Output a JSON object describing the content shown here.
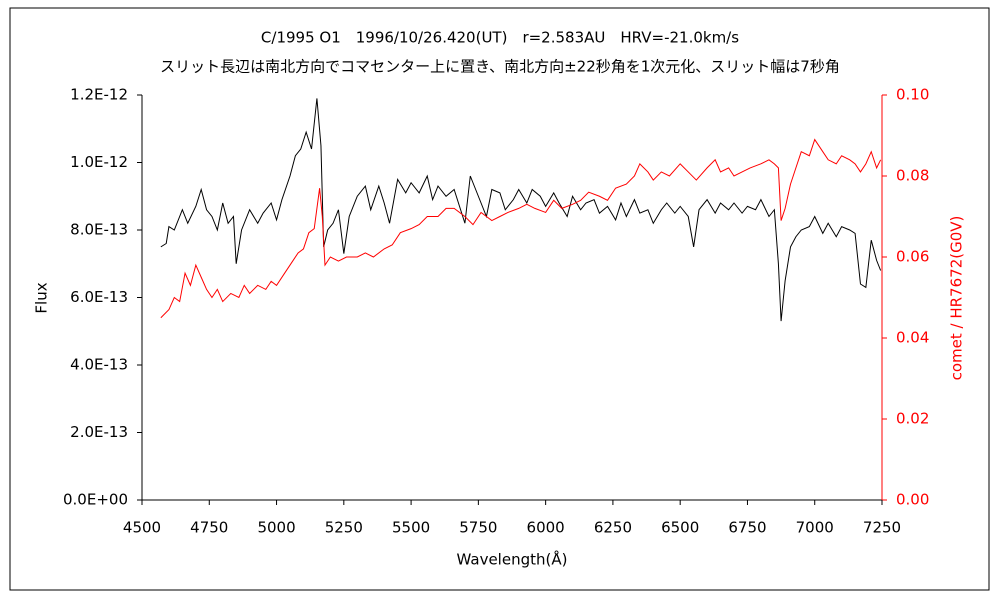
{
  "chart_data": {
    "type": "line",
    "title": "C/1995 O1　1996/10/26.420(UT)　r=2.583AU　HRV=-21.0km/s",
    "subtitle": "スリット長辺は南北方向でコマセンター上に置き、南北方向±22秒角を1次元化、スリット幅は7秒角",
    "x_label": "Wavelength(Å)",
    "y_label": "Flux",
    "y2_label": "comet / HR7672(G0V)",
    "xlim": [
      4500,
      7250
    ],
    "xticks": [
      4500,
      4750,
      5000,
      5250,
      5500,
      5750,
      6000,
      6250,
      6500,
      6750,
      7000,
      7250
    ],
    "ylim": [
      0,
      1.2e-12
    ],
    "yticks": [
      {
        "value": 0,
        "label": "0.0E+00"
      },
      {
        "value": 2e-13,
        "label": "2.0E-13"
      },
      {
        "value": 4e-13,
        "label": "4.0E-13"
      },
      {
        "value": 6e-13,
        "label": "6.0E-13"
      },
      {
        "value": 8e-13,
        "label": "8.0E-13"
      },
      {
        "value": 1e-12,
        "label": "1.0E-12"
      },
      {
        "value": 1.2e-12,
        "label": "1.2E-12"
      }
    ],
    "y2lim": [
      0,
      0.1
    ],
    "y2ticks": [
      {
        "value": 0,
        "label": "0.00"
      },
      {
        "value": 0.02,
        "label": "0.02"
      },
      {
        "value": 0.04,
        "label": "0.04"
      },
      {
        "value": 0.06,
        "label": "0.06"
      },
      {
        "value": 0.08,
        "label": "0.08"
      },
      {
        "value": 0.1,
        "label": "0.10"
      }
    ],
    "y2_color": "#ff0000",
    "series": [
      {
        "color": "#000000",
        "x": [
          4570,
          4590,
          4600,
          4620,
          4650,
          4670,
          4700,
          4720,
          4740,
          4760,
          4780,
          4800,
          4820,
          4840,
          4850,
          4870,
          4900,
          4930,
          4950,
          4980,
          5000,
          5020,
          5050,
          5070,
          5090,
          5110,
          5130,
          5150,
          5165,
          5175,
          5190,
          5210,
          5230,
          5250,
          5270,
          5300,
          5330,
          5350,
          5380,
          5400,
          5420,
          5450,
          5480,
          5500,
          5530,
          5560,
          5580,
          5600,
          5630,
          5660,
          5680,
          5700,
          5720,
          5750,
          5780,
          5800,
          5830,
          5850,
          5880,
          5900,
          5930,
          5950,
          5980,
          6000,
          6030,
          6050,
          6080,
          6100,
          6130,
          6150,
          6180,
          6200,
          6230,
          6260,
          6280,
          6300,
          6330,
          6350,
          6380,
          6400,
          6430,
          6450,
          6480,
          6500,
          6530,
          6550,
          6570,
          6600,
          6630,
          6650,
          6680,
          6700,
          6730,
          6750,
          6780,
          6800,
          6830,
          6850,
          6865,
          6875,
          6890,
          6910,
          6930,
          6950,
          6980,
          7000,
          7030,
          7050,
          7080,
          7100,
          7130,
          7150,
          7170,
          7190,
          7210,
          7230,
          7245
        ],
        "values": [
          7.5e-13,
          7.6e-13,
          8.1e-13,
          8e-13,
          8.6e-13,
          8.2e-13,
          8.7e-13,
          9.2e-13,
          8.6e-13,
          8.4e-13,
          8e-13,
          8.8e-13,
          8.2e-13,
          8.4e-13,
          7e-13,
          8e-13,
          8.6e-13,
          8.2e-13,
          8.5e-13,
          8.8e-13,
          8.3e-13,
          8.9e-13,
          9.6e-13,
          1.02e-12,
          1.04e-12,
          1.09e-12,
          1.04e-12,
          1.19e-12,
          1.05e-12,
          7.5e-13,
          8e-13,
          8.2e-13,
          8.6e-13,
          7.3e-13,
          8.4e-13,
          9e-13,
          9.3e-13,
          8.6e-13,
          9.3e-13,
          8.8e-13,
          8.2e-13,
          9.5e-13,
          9.1e-13,
          9.4e-13,
          9.1e-13,
          9.6e-13,
          8.9e-13,
          9.3e-13,
          9e-13,
          9.2e-13,
          8.7e-13,
          8.2e-13,
          9.6e-13,
          9e-13,
          8.4e-13,
          9.2e-13,
          9.1e-13,
          8.6e-13,
          8.9e-13,
          9.2e-13,
          8.8e-13,
          9.2e-13,
          9e-13,
          8.7e-13,
          9.1e-13,
          8.8e-13,
          8.4e-13,
          9e-13,
          8.6e-13,
          8.8e-13,
          8.9e-13,
          8.5e-13,
          8.7e-13,
          8.3e-13,
          8.8e-13,
          8.4e-13,
          8.9e-13,
          8.5e-13,
          8.6e-13,
          8.2e-13,
          8.6e-13,
          8.8e-13,
          8.5e-13,
          8.7e-13,
          8.4e-13,
          7.5e-13,
          8.6e-13,
          8.9e-13,
          8.5e-13,
          8.8e-13,
          8.6e-13,
          8.8e-13,
          8.5e-13,
          8.7e-13,
          8.6e-13,
          8.9e-13,
          8.4e-13,
          8.6e-13,
          7e-13,
          5.3e-13,
          6.5e-13,
          7.5e-13,
          7.8e-13,
          8e-13,
          8.1e-13,
          8.4e-13,
          7.9e-13,
          8.2e-13,
          7.8e-13,
          8.1e-13,
          8e-13,
          7.9e-13,
          6.4e-13,
          6.3e-13,
          7.7e-13,
          7.1e-13,
          6.8e-13
        ]
      },
      {
        "color": "#ff0000",
        "axis": "y2",
        "x": [
          4570,
          4600,
          4620,
          4640,
          4660,
          4680,
          4700,
          4720,
          4740,
          4760,
          4780,
          4800,
          4830,
          4860,
          4880,
          4900,
          4930,
          4960,
          4980,
          5000,
          5030,
          5060,
          5080,
          5100,
          5120,
          5140,
          5160,
          5170,
          5180,
          5200,
          5230,
          5260,
          5300,
          5330,
          5360,
          5400,
          5430,
          5460,
          5500,
          5530,
          5560,
          5600,
          5630,
          5660,
          5700,
          5730,
          5760,
          5800,
          5830,
          5860,
          5900,
          5930,
          5960,
          6000,
          6030,
          6060,
          6100,
          6130,
          6160,
          6200,
          6230,
          6260,
          6300,
          6330,
          6350,
          6380,
          6400,
          6430,
          6460,
          6500,
          6530,
          6560,
          6600,
          6630,
          6650,
          6680,
          6700,
          6730,
          6760,
          6800,
          6830,
          6850,
          6865,
          6875,
          6890,
          6910,
          6930,
          6950,
          6980,
          7000,
          7030,
          7050,
          7080,
          7100,
          7130,
          7150,
          7170,
          7190,
          7210,
          7230,
          7245
        ],
        "values": [
          0.045,
          0.047,
          0.05,
          0.049,
          0.056,
          0.053,
          0.058,
          0.055,
          0.052,
          0.05,
          0.052,
          0.049,
          0.051,
          0.05,
          0.053,
          0.051,
          0.053,
          0.052,
          0.054,
          0.053,
          0.056,
          0.059,
          0.061,
          0.062,
          0.066,
          0.067,
          0.077,
          0.07,
          0.058,
          0.06,
          0.059,
          0.06,
          0.06,
          0.061,
          0.06,
          0.062,
          0.063,
          0.066,
          0.067,
          0.068,
          0.07,
          0.07,
          0.072,
          0.072,
          0.07,
          0.068,
          0.071,
          0.069,
          0.07,
          0.071,
          0.072,
          0.073,
          0.072,
          0.071,
          0.074,
          0.072,
          0.073,
          0.074,
          0.076,
          0.075,
          0.074,
          0.077,
          0.078,
          0.08,
          0.083,
          0.081,
          0.079,
          0.081,
          0.08,
          0.083,
          0.081,
          0.079,
          0.082,
          0.084,
          0.081,
          0.082,
          0.08,
          0.081,
          0.082,
          0.083,
          0.084,
          0.083,
          0.082,
          0.069,
          0.072,
          0.078,
          0.082,
          0.086,
          0.085,
          0.089,
          0.086,
          0.084,
          0.083,
          0.085,
          0.084,
          0.083,
          0.081,
          0.083,
          0.086,
          0.082,
          0.084
        ]
      }
    ]
  }
}
